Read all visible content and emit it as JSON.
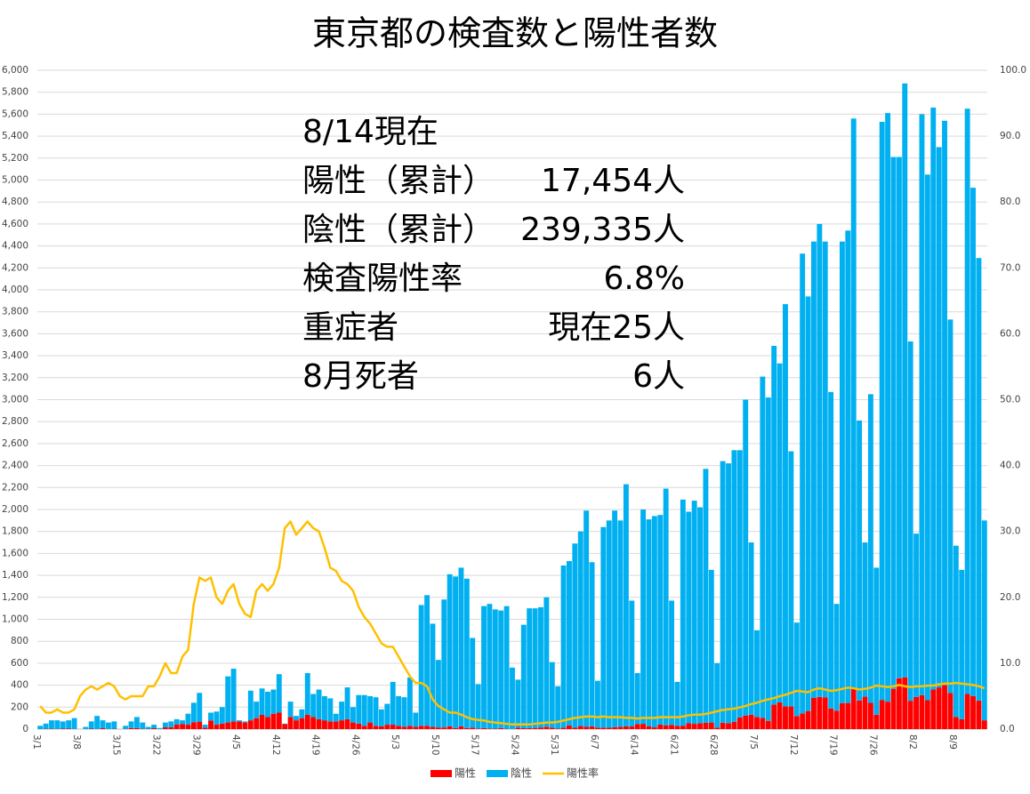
{
  "chart_data": {
    "type": "bar",
    "stacked": true,
    "title": "東京都の検査数と陽性者数",
    "annotations": [
      {
        "label": "8/14現在"
      },
      {
        "label": "陽性（累計）",
        "value": "17,454人"
      },
      {
        "label": "陰性（累計）",
        "value": "239,335人"
      },
      {
        "label": "検査陽性率",
        "value": "6.8%"
      },
      {
        "label": "重症者",
        "value": "現在25人"
      },
      {
        "label": "8月死者",
        "value": "6人"
      }
    ],
    "categories": [
      "3/1",
      null,
      null,
      null,
      null,
      null,
      null,
      "3/8",
      null,
      null,
      null,
      null,
      null,
      null,
      "3/15",
      null,
      null,
      null,
      null,
      null,
      null,
      "3/22",
      null,
      null,
      null,
      null,
      null,
      null,
      "3/29",
      null,
      null,
      null,
      null,
      null,
      null,
      "4/5",
      null,
      null,
      null,
      null,
      null,
      null,
      "4/12",
      null,
      null,
      null,
      null,
      null,
      null,
      "4/19",
      null,
      null,
      null,
      null,
      null,
      null,
      "4/26",
      null,
      null,
      null,
      null,
      null,
      null,
      "5/3",
      null,
      null,
      null,
      null,
      null,
      null,
      "5/10",
      null,
      null,
      null,
      null,
      null,
      null,
      "5/17",
      null,
      null,
      null,
      null,
      null,
      null,
      "5/24",
      null,
      null,
      null,
      null,
      null,
      null,
      "5/31",
      null,
      null,
      null,
      null,
      null,
      null,
      "6/7",
      null,
      null,
      null,
      null,
      null,
      null,
      "6/14",
      null,
      null,
      null,
      null,
      null,
      null,
      "6/21",
      null,
      null,
      null,
      null,
      null,
      null,
      "6/28",
      null,
      null,
      null,
      null,
      null,
      null,
      "7/5",
      null,
      null,
      null,
      null,
      null,
      null,
      "7/12",
      null,
      null,
      null,
      null,
      null,
      null,
      "7/19",
      null,
      null,
      null,
      null,
      null,
      null,
      "7/26",
      null,
      null,
      null,
      null,
      null,
      null,
      "8/2",
      null,
      null,
      null,
      null,
      null,
      null,
      "8/9",
      null,
      null,
      null,
      null,
      null
    ],
    "series": [
      {
        "name": "陽性",
        "color": "#ff0000",
        "values": [
          0,
          3,
          3,
          2,
          4,
          4,
          2,
          0,
          1,
          4,
          2,
          8,
          1,
          3,
          0,
          2,
          10,
          9,
          3,
          3,
          8,
          1,
          16,
          17,
          41,
          47,
          40,
          63,
          68,
          13,
          78,
          40,
          50,
          60,
          70,
          70,
          60,
          80,
          100,
          130,
          110,
          140,
          150,
          45,
          110,
          80,
          100,
          130,
          110,
          90,
          80,
          70,
          70,
          80,
          90,
          60,
          50,
          30,
          60,
          30,
          25,
          40,
          40,
          30,
          20,
          30,
          20,
          30,
          30,
          20,
          15,
          15,
          25,
          10,
          25,
          10,
          14,
          5,
          10,
          5,
          5,
          10,
          3,
          2,
          14,
          8,
          10,
          11,
          15,
          22,
          14,
          5,
          13,
          34,
          12,
          28,
          20,
          26,
          14,
          13,
          12,
          18,
          22,
          25,
          24,
          47,
          48,
          27,
          16,
          41,
          35,
          39,
          29,
          31,
          55,
          48,
          54,
          57,
          60,
          14,
          58,
          54,
          67,
          107,
          124,
          131,
          111,
          102,
          75,
          224,
          243,
          206,
          206,
          119,
          143,
          165,
          286,
          293,
          290,
          188,
          168,
          237,
          238,
          366,
          260,
          295,
          239,
          131,
          266,
          250,
          367,
          463,
          472,
          258,
          292,
          309,
          263,
          360,
          380,
          400,
          330,
          110,
          90,
          320,
          300,
          260,
          80
        ]
      },
      {
        "name": "陰性",
        "color": "#00b0f0",
        "values": [
          30,
          47,
          77,
          78,
          66,
          76,
          98,
          0,
          19,
          66,
          118,
          72,
          59,
          67,
          0,
          28,
          60,
          101,
          57,
          17,
          32,
          9,
          44,
          53,
          49,
          33,
          100,
          177,
          262,
          27,
          72,
          120,
          150,
          420,
          480,
          10,
          10,
          270,
          150,
          240,
          230,
          220,
          350,
          5,
          140,
          40,
          80,
          380,
          210,
          270,
          220,
          210,
          70,
          170,
          290,
          140,
          260,
          280,
          240,
          260,
          155,
          190,
          390,
          270,
          270,
          440,
          130,
          1100,
          1190,
          940,
          615,
          1165,
          1385,
          1380,
          1445,
          1360,
          816,
          405,
          1110,
          1135,
          1085,
          1070,
          1117,
          558,
          436,
          942,
          1090,
          1089,
          1095,
          1178,
          596,
          385,
          1477,
          1496,
          1678,
          1772,
          1970,
          1494,
          426,
          1827,
          1888,
          1972,
          1878,
          2205,
          1146,
          463,
          1952,
          1883,
          1924,
          1909,
          2155,
          1131,
          401,
          2059,
          1925,
          2032,
          1966,
          2313,
          1390,
          586,
          2382,
          2366,
          2473,
          2433,
          2876,
          1569,
          789,
          3108,
          2945,
          3266,
          3087,
          3664,
          2324,
          851,
          4187,
          3775,
          4154,
          4307,
          4150,
          2882,
          972,
          4203,
          4302,
          5194,
          2550,
          1405,
          2811,
          1339,
          5264,
          5360,
          4843,
          4747,
          5408,
          3272,
          1488,
          5291,
          4787,
          5300,
          4920,
          5140,
          3400,
          1560,
          1360,
          5330,
          4630,
          4030,
          1820
        ]
      },
      {
        "name": "陽性率",
        "color": "#ffc000",
        "type": "line",
        "axis": "y2",
        "values": [
          3.5,
          2.5,
          2.5,
          3,
          2.5,
          2.5,
          3,
          5,
          6,
          6.5,
          6,
          6.5,
          7,
          6.5,
          5,
          4.5,
          5,
          5,
          5,
          6.5,
          6.5,
          8,
          10,
          8.5,
          8.5,
          11,
          12,
          19,
          23,
          22.5,
          23,
          20,
          19,
          21,
          22,
          19,
          17.5,
          17,
          21,
          22,
          21,
          22,
          24.5,
          30.5,
          31.5,
          29.5,
          30.5,
          31.5,
          30.5,
          30,
          27.5,
          24.5,
          24,
          22.5,
          22,
          21,
          18.5,
          17,
          16,
          14.5,
          13,
          12.5,
          12.5,
          11,
          9.5,
          8,
          7,
          7,
          6.5,
          4.5,
          3.5,
          3,
          2.5,
          2.5,
          2.2,
          1.8,
          1.5,
          1.4,
          1.3,
          1.1,
          1,
          0.9,
          0.8,
          0.7,
          0.7,
          0.7,
          0.7,
          0.8,
          0.9,
          1,
          1,
          1.1,
          1.3,
          1.5,
          1.7,
          1.8,
          1.9,
          1.9,
          1.8,
          1.9,
          1.8,
          1.8,
          1.8,
          1.7,
          1.7,
          1.6,
          1.7,
          1.7,
          1.7,
          1.8,
          1.8,
          1.8,
          1.8,
          1.9,
          2.1,
          2.2,
          2.2,
          2.3,
          2.5,
          2.7,
          2.9,
          3.0,
          3.1,
          3.3,
          3.5,
          3.8,
          4.0,
          4.3,
          4.5,
          4.7,
          5.0,
          5.2,
          5.5,
          5.8,
          5.7,
          5.6,
          6.0,
          6.2,
          6.0,
          5.8,
          5.9,
          6.1,
          6.3,
          6.2,
          6.0,
          6.1,
          6.3,
          6.6,
          6.5,
          6.4,
          6.5,
          6.7,
          6.5,
          6.4,
          6.5,
          6.5,
          6.6,
          6.6,
          6.8,
          6.9,
          6.9,
          7.0,
          6.9,
          6.8,
          6.7,
          6.5,
          6.2
        ]
      }
    ],
    "ylim": [
      0,
      6000
    ],
    "yticks": [
      0,
      200,
      400,
      600,
      800,
      {
        "value": 1000,
        "label": "1,000"
      },
      {
        "value": 1200,
        "label": "1,200"
      },
      {
        "value": 1400,
        "label": "1,400"
      },
      {
        "value": 1600,
        "label": "1,600"
      },
      {
        "value": 1800,
        "label": "1,800"
      },
      {
        "value": 2000,
        "label": "2,000"
      },
      {
        "value": 2200,
        "label": "2,200"
      },
      {
        "value": 2400,
        "label": "2,400"
      },
      {
        "value": 2600,
        "label": "2,600"
      },
      {
        "value": 2800,
        "label": "2,800"
      },
      {
        "value": 3000,
        "label": "3,000"
      },
      {
        "value": 3200,
        "label": "3,200"
      },
      {
        "value": 3400,
        "label": "3,400"
      },
      {
        "value": 3600,
        "label": "3,600"
      },
      {
        "value": 3800,
        "label": "3,800"
      },
      {
        "value": 4000,
        "label": "4,000"
      },
      {
        "value": 4200,
        "label": "4,200"
      },
      {
        "value": 4400,
        "label": "4,400"
      },
      {
        "value": 4600,
        "label": "4,600"
      },
      {
        "value": 4800,
        "label": "4,800"
      },
      {
        "value": 5000,
        "label": "5,000"
      },
      {
        "value": 5200,
        "label": "5,200"
      },
      {
        "value": 5400,
        "label": "5,400"
      },
      {
        "value": 5600,
        "label": "5,600"
      },
      {
        "value": 5800,
        "label": "5,800"
      },
      {
        "value": 6000,
        "label": "6,000"
      }
    ],
    "y2lim": [
      0,
      100
    ],
    "y2ticks": [
      {
        "value": 0,
        "label": "0.0"
      },
      {
        "value": 10,
        "label": "10.0"
      },
      {
        "value": 20,
        "label": "20.0"
      },
      {
        "value": 30,
        "label": "30.0"
      },
      {
        "value": 40,
        "label": "40.0"
      },
      {
        "value": 50,
        "label": "50.0"
      },
      {
        "value": 60,
        "label": "60.0"
      },
      {
        "value": 70,
        "label": "70.0"
      },
      {
        "value": 80,
        "label": "80.0"
      },
      {
        "value": 90,
        "label": "90.0"
      },
      {
        "value": 100,
        "label": "100.0"
      }
    ],
    "grid": true,
    "legend": "bottom"
  }
}
